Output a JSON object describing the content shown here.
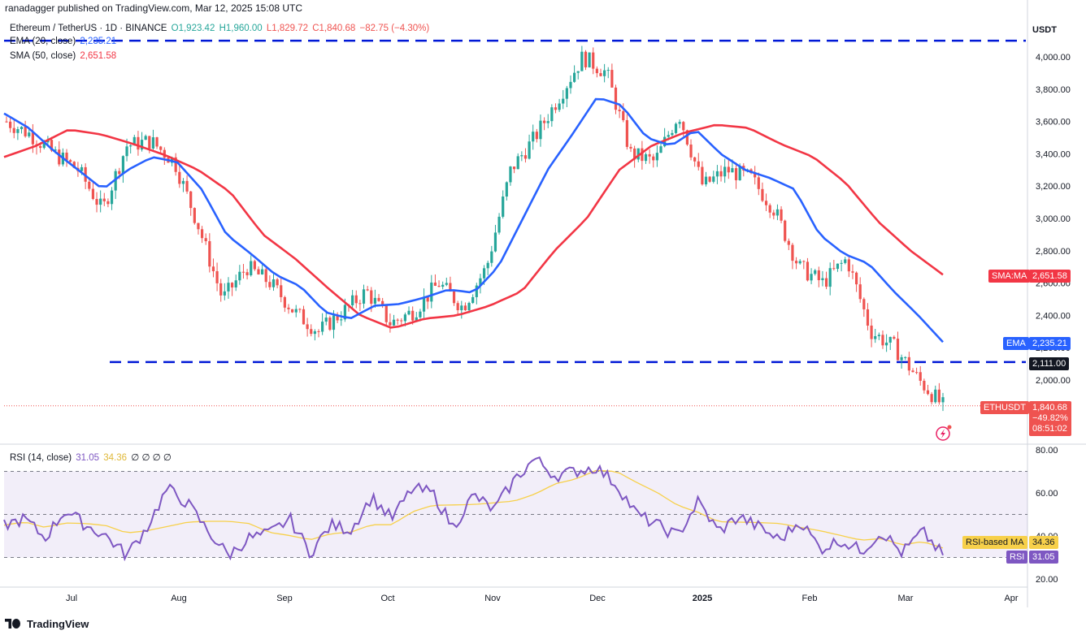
{
  "header": {
    "publisher_text": "ranadagger published on TradingView.com, Mar 12, 2025 15:08 UTC"
  },
  "legend": {
    "symbol": "Ethereum / TetherUS · 1D · BINANCE",
    "ohlc": {
      "o": "O1,923.42",
      "h": "H1,960.00",
      "l": "L1,829.72",
      "c": "C1,840.68",
      "chg": "−82.75 (−4.30%)"
    },
    "ema_label": "EMA (20, close)",
    "ema_value": "2,235.21",
    "sma_label": "SMA (50, close)",
    "sma_value": "2,651.58",
    "rsi_label": "RSI (14, close)",
    "rsi_value": "31.05",
    "rsi_ma_value": "34.36",
    "rsi_extra": "∅ ∅ ∅ ∅"
  },
  "price_axis": {
    "currency": "USDT"
  },
  "labels": {
    "sma_tag": "SMA:MA",
    "sma_price": "2,651.58",
    "ema_tag": "EMA",
    "ema_price": "2,235.21",
    "support_price": "2,111.00",
    "symbol_tag": "ETHUSDT",
    "last_price": "1,840.68",
    "last_change": "−49.82%",
    "countdown": "08:51:02",
    "rsi_ma_tag": "RSI-based MA",
    "rsi_ma_val": "34.36",
    "rsi_tag": "RSI",
    "rsi_val": "31.05"
  },
  "footer": {
    "brand": "TradingView"
  },
  "colors": {
    "up": "#26a69a",
    "down": "#ef5350",
    "ema": "#2962ff",
    "sma": "#f23645",
    "rsi": "#7e57c2",
    "rsi_ma": "#f7d04a",
    "guide": "#0018d6"
  },
  "chart_data": [
    {
      "type": "candlestick",
      "title": "Ethereum / TetherUS · 1D · BINANCE",
      "x_tick_labels": [
        "Jul",
        "Aug",
        "Sep",
        "Oct",
        "Nov",
        "Dec",
        "2025",
        "Feb",
        "Mar",
        "Apr"
      ],
      "y_tick_labels": [
        "2,000.00",
        "2,200.00",
        "2,400.00",
        "2,600.00",
        "2,800.00",
        "3,000.00",
        "3,200.00",
        "3,400.00",
        "3,600.00",
        "3,800.00",
        "4,000.00"
      ],
      "ylim": [
        1740,
        4120
      ],
      "y_scale": "linear",
      "horizontal_lines": [
        4100,
        2111
      ],
      "series": [
        {
          "name": "EMA (20, close)",
          "anchor_values": [
            3650,
            3560,
            3420,
            3300,
            3180,
            3300,
            3380,
            3350,
            3180,
            2900,
            2780,
            2650,
            2580,
            2420,
            2380,
            2460,
            2470,
            2510,
            2560,
            2540,
            2700,
            3000,
            3300,
            3520,
            3750,
            3700,
            3500,
            3450,
            3550,
            3400,
            3300,
            3250,
            3180,
            2900,
            2780,
            2720,
            2550,
            2400,
            2235
          ]
        },
        {
          "name": "SMA (50, close)",
          "anchor_values": [
            3380,
            3450,
            3550,
            3520,
            3460,
            3390,
            3300,
            3160,
            2900,
            2750,
            2570,
            2400,
            2320,
            2380,
            2400,
            2460,
            2550,
            2800,
            3000,
            3300,
            3450,
            3530,
            3580,
            3560,
            3460,
            3380,
            3220,
            2980,
            2800,
            2652
          ]
        },
        {
          "name": "RSI (14, close)",
          "last": 31.05,
          "anchor_values": [
            45,
            48,
            39,
            52,
            45,
            40,
            31,
            44,
            62,
            55,
            42,
            31,
            39,
            41,
            48,
            32,
            45,
            43,
            58,
            48,
            62,
            60,
            44,
            59,
            52,
            66,
            76,
            68,
            70,
            72,
            64,
            50,
            45,
            40,
            56,
            42,
            49,
            44,
            38,
            47,
            34,
            38,
            33,
            42,
            32,
            42,
            31
          ]
        },
        {
          "name": "RSI-based MA",
          "last": 34.36
        }
      ],
      "rsi_ylim": [
        16,
        83
      ],
      "rsi_y_tick_labels": [
        "20.00",
        "40.00",
        "60.00",
        "80.00"
      ],
      "rsi_bands": [
        70,
        50,
        30
      ]
    }
  ]
}
